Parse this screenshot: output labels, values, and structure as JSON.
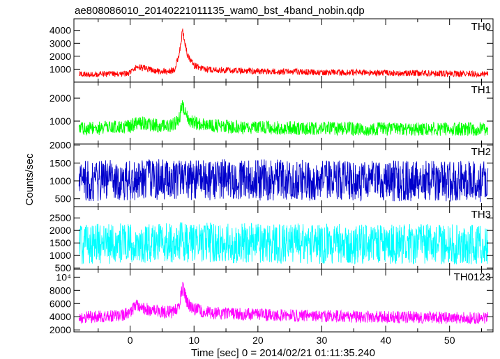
{
  "title": "ae808086010_20140221011135_wam0_bst_4band_nobin.qdp",
  "ylabel": "Counts/sec",
  "xlabel": "Time [sec] 0 = 2014/02/21 01:11:35.240",
  "chart_data": [
    {
      "type": "line",
      "name": "TH0",
      "color": "#ff0000",
      "xlim": [
        -8.8,
        56.8
      ],
      "ylim": [
        0,
        4900
      ],
      "ytick_values": [
        1000,
        2000,
        3000,
        4000
      ],
      "ytick_labels": [
        "1000",
        "2000",
        "3000",
        "4000"
      ],
      "x": [
        -8,
        -6,
        -4,
        -2,
        0,
        1,
        2,
        4,
        6,
        7,
        7.8,
        8.2,
        8.6,
        9,
        10,
        11,
        12,
        14,
        16,
        20,
        25,
        30,
        35,
        40,
        45,
        50,
        55,
        56
      ],
      "y": [
        600,
        600,
        620,
        620,
        700,
        1200,
        1100,
        850,
        800,
        1000,
        2500,
        4000,
        3000,
        2000,
        1300,
        1100,
        1000,
        950,
        900,
        850,
        800,
        750,
        750,
        700,
        700,
        650,
        650,
        650
      ],
      "noise": 420
    },
    {
      "type": "line",
      "name": "TH1",
      "color": "#00ff00",
      "xlim": [
        -8.8,
        56.8
      ],
      "ylim": [
        0,
        2700
      ],
      "ytick_values": [
        1000,
        2000
      ],
      "ytick_labels": [
        "1000",
        "2000"
      ],
      "x": [
        -8,
        -4,
        0,
        1,
        2,
        4,
        6,
        7.5,
        8.2,
        8.8,
        9.5,
        11,
        14,
        20,
        30,
        40,
        50,
        56
      ],
      "y": [
        650,
        700,
        750,
        950,
        900,
        800,
        750,
        950,
        1700,
        1300,
        1000,
        850,
        780,
        720,
        680,
        650,
        650,
        650
      ],
      "noise": 480
    },
    {
      "type": "line",
      "name": "TH2",
      "color": "#0000cc",
      "xlim": [
        -8.8,
        56.8
      ],
      "ylim": [
        280,
        2030
      ],
      "ytick_values": [
        500,
        1000,
        1500,
        2000
      ],
      "ytick_labels": [
        "500",
        "1000",
        "1500",
        "2000"
      ],
      "x": [
        -8,
        0,
        8,
        16,
        24,
        32,
        40,
        48,
        56
      ],
      "y": [
        1000,
        1020,
        1040,
        1030,
        1020,
        1010,
        1000,
        990,
        980
      ],
      "noise": 820
    },
    {
      "type": "line",
      "name": "TH3",
      "color": "#00ffff",
      "xlim": [
        -8.8,
        56.8
      ],
      "ylim": [
        450,
        2950
      ],
      "ytick_values": [
        500,
        1000,
        1500,
        2000,
        2500
      ],
      "ytick_labels": [
        "500",
        "1000",
        "1500",
        "2000",
        "2500"
      ],
      "x": [
        -8,
        0,
        8,
        16,
        24,
        32,
        40,
        48,
        56
      ],
      "y": [
        1450,
        1480,
        1520,
        1500,
        1480,
        1470,
        1460,
        1450,
        1440
      ],
      "noise": 1150
    },
    {
      "type": "line",
      "name": "TH0123",
      "color": "#ff00ff",
      "xlim": [
        -8.8,
        56.8
      ],
      "ylim": [
        1700,
        11200
      ],
      "ytick_values": [
        2000,
        4000,
        6000,
        8000,
        10000
      ],
      "ytick_labels": [
        "2000",
        "4000",
        "6000",
        "8000",
        "10⁴"
      ],
      "xtick_values": [
        0,
        10,
        20,
        30,
        40,
        50
      ],
      "xtick_labels": [
        "0",
        "10",
        "20",
        "30",
        "40",
        "50"
      ],
      "x": [
        -8,
        -4,
        -1,
        0,
        1,
        2,
        3,
        5,
        6.5,
        7.5,
        8.2,
        8.8,
        9.5,
        11,
        13,
        16,
        20,
        25,
        30,
        35,
        40,
        45,
        50,
        55,
        56
      ],
      "y": [
        3900,
        4000,
        4200,
        4800,
        5900,
        5400,
        5000,
        4800,
        4700,
        5200,
        8500,
        6500,
        5300,
        4900,
        4600,
        4400,
        4300,
        4200,
        4100,
        4000,
        3950,
        3900,
        3850,
        3800,
        3800
      ],
      "noise": 1500
    }
  ]
}
